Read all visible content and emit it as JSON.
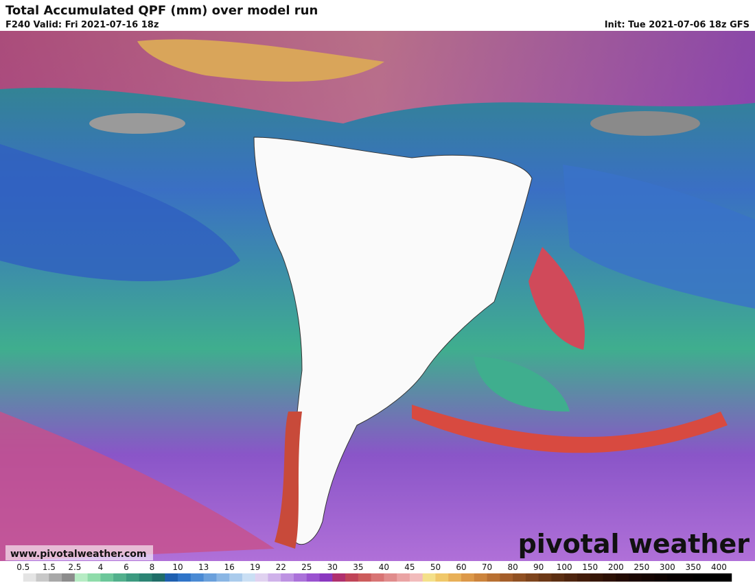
{
  "header": {
    "title": "Total Accumulated QPF (mm) over model run",
    "valid": "F240 Valid: Fri 2021-07-16 18z",
    "init": "Init: Tue 2021-07-06 18z GFS"
  },
  "footer": {
    "url": "www.pivotalweather.com",
    "logo": "pivotal weather"
  },
  "legend": {
    "labels": [
      0.5,
      1.5,
      2.5,
      4,
      6,
      8,
      10,
      13,
      16,
      19,
      22,
      25,
      30,
      35,
      40,
      45,
      50,
      60,
      70,
      80,
      90,
      100,
      150,
      200,
      250,
      300,
      350,
      400
    ]
  }
}
